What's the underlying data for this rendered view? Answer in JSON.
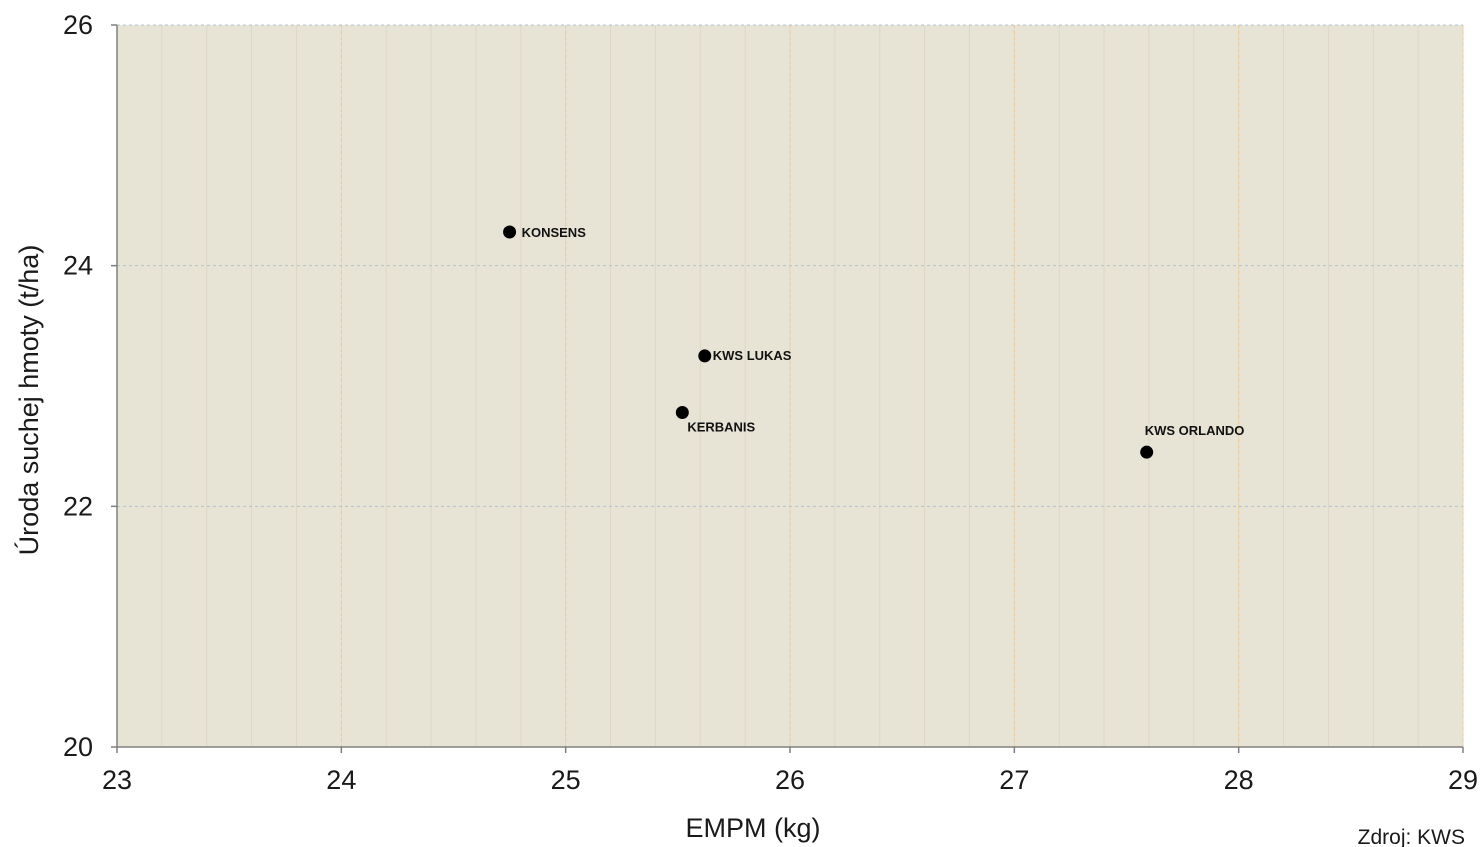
{
  "chart_data": {
    "type": "scatter",
    "xlabel": "EMPM (kg)",
    "ylabel": "Úroda suchej hmoty (t/ha)",
    "xlim": [
      23,
      29
    ],
    "ylim": [
      20,
      26
    ],
    "x_ticks": [
      "23",
      "24",
      "25",
      "26",
      "27",
      "28",
      "29"
    ],
    "y_ticks": [
      "20",
      "22",
      "24",
      "26"
    ],
    "grid": true,
    "points": [
      {
        "label": "KONSENS",
        "x": 24.75,
        "y": 24.28
      },
      {
        "label": "KWS LUKAS",
        "x": 25.62,
        "y": 23.25
      },
      {
        "label": "KERBANIS",
        "x": 25.52,
        "y": 22.78
      },
      {
        "label": "KWS ORLANDO",
        "x": 27.59,
        "y": 22.45
      }
    ],
    "colors": {
      "plot_background": "#e7e4d6",
      "vertical_grid": "#f2c994",
      "horizontal_grid": "#a9c6d8",
      "axis": "#808080",
      "marker": "#000000"
    }
  },
  "source": "Zdroj: KWS"
}
